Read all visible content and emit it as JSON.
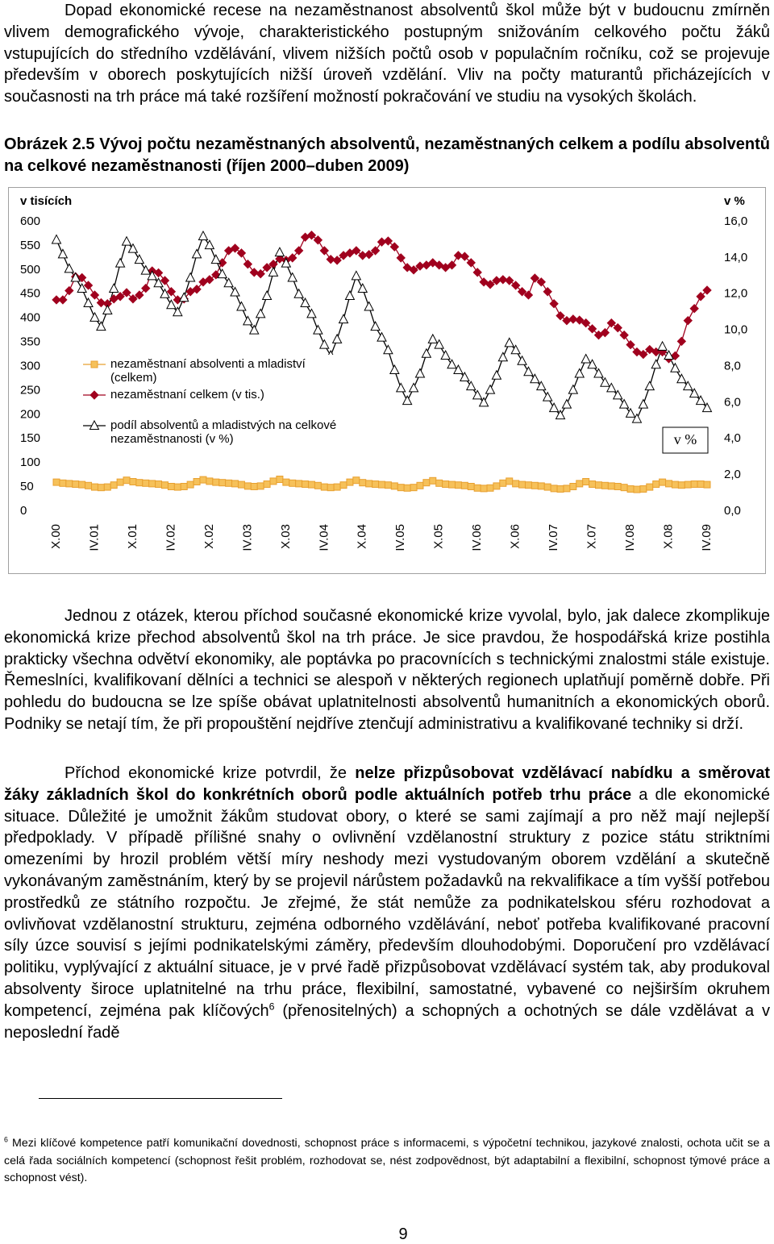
{
  "intro_paragraph": "Dopad ekonomické recese na nezaměstnanost absolventů škol může být v budoucnu zmírněn vlivem demografického vývoje, charakteristického postupným snižováním celkového počtu žáků vstupujících do středního vzdělávání, vlivem nižších počtů osob v populačním ročníku, což se projevuje především v oborech poskytujících nižší úroveň vzdělání. Vliv na počty maturantů přicházejících v současnosti na trh práce má také rozšíření možností pokračování ve studiu na vysokých školách.",
  "figure_caption": "Obrázek 2.5 Vývoj počtu nezaměstnaných absolventů, nezaměstnaných celkem a podílu absolventů na celkové nezaměstnanosti (říjen 2000–duben 2009)",
  "chart_data": {
    "type": "line",
    "y_label": "v tisících",
    "y2_label": "v %",
    "annotation": "v %",
    "legend": "lower left",
    "categories": [
      "X.00",
      null,
      null,
      null,
      null,
      null,
      "IV.01",
      null,
      null,
      null,
      null,
      null,
      "X.01",
      null,
      null,
      null,
      null,
      null,
      "IV.02",
      null,
      null,
      null,
      null,
      null,
      "X.02",
      null,
      null,
      null,
      null,
      null,
      "IV.03",
      null,
      null,
      null,
      null,
      null,
      "X.03",
      null,
      null,
      null,
      null,
      null,
      "IV.04",
      null,
      null,
      null,
      null,
      null,
      "X.04",
      null,
      null,
      null,
      null,
      null,
      "IV.05",
      null,
      null,
      null,
      null,
      null,
      "X.05",
      null,
      null,
      null,
      null,
      null,
      "IV.06",
      null,
      null,
      null,
      null,
      null,
      "X.06",
      null,
      null,
      null,
      null,
      null,
      "IV.07",
      null,
      null,
      null,
      null,
      null,
      "X.07",
      null,
      null,
      null,
      null,
      null,
      "IV.08",
      null,
      null,
      null,
      null,
      null,
      "X.08",
      null,
      null,
      null,
      null,
      null,
      "IV.09"
    ],
    "ylim": [
      0,
      600
    ],
    "yticks": [
      0,
      50,
      100,
      150,
      200,
      250,
      300,
      350,
      400,
      450,
      500,
      550,
      600
    ],
    "y2lim": [
      0,
      16
    ],
    "y2ticks": [
      {
        "value": 0,
        "label": "0,0"
      },
      {
        "value": 2,
        "label": "2,0"
      },
      {
        "value": 4,
        "label": "4,0"
      },
      {
        "value": 6,
        "label": "6,0"
      },
      {
        "value": 8,
        "label": "8,0"
      },
      {
        "value": 10,
        "label": "10,0"
      },
      {
        "value": 12,
        "label": "12,0"
      },
      {
        "value": 14,
        "label": "14,0"
      },
      {
        "value": 16,
        "label": "16,0"
      }
    ],
    "series": [
      {
        "name": "nezaměstnaní absolventi a mladiství (celkem)",
        "color": "#e8a030",
        "marker": "square",
        "marker_fill": "#f6c15a",
        "values": [
          60,
          58,
          57,
          56,
          55,
          53,
          50,
          49,
          50,
          54,
          60,
          64,
          61,
          59,
          58,
          57,
          56,
          54,
          51,
          50,
          51,
          55,
          61,
          65,
          62,
          60,
          59,
          58,
          57,
          55,
          52,
          51,
          52,
          56,
          62,
          66,
          60,
          58,
          57,
          56,
          55,
          53,
          50,
          49,
          50,
          54,
          60,
          64,
          59,
          57,
          56,
          55,
          54,
          52,
          49,
          48,
          49,
          53,
          59,
          63,
          58,
          56,
          55,
          54,
          53,
          51,
          48,
          47,
          48,
          52,
          58,
          62,
          57,
          55,
          54,
          53,
          52,
          50,
          47,
          46,
          47,
          51,
          57,
          61,
          56,
          54,
          53,
          52,
          51,
          49,
          46,
          45,
          46,
          50,
          56,
          60,
          57,
          55,
          54,
          55,
          56,
          56,
          55
        ]
      },
      {
        "name": "nezaměstnaní celkem (v tis.)",
        "color": "#a0001e",
        "marker": "diamond",
        "marker_fill": "#a0001e",
        "values": [
          438,
          438,
          457,
          486,
          484,
          468,
          448,
          432,
          430,
          440,
          445,
          453,
          440,
          448,
          462,
          498,
          494,
          478,
          455,
          438,
          440,
          455,
          460,
          475,
          480,
          490,
          515,
          540,
          545,
          535,
          512,
          495,
          492,
          505,
          512,
          523,
          520,
          525,
          540,
          568,
          572,
          562,
          540,
          522,
          520,
          530,
          535,
          540,
          530,
          532,
          540,
          558,
          560,
          548,
          525,
          505,
          500,
          508,
          510,
          515,
          510,
          505,
          510,
          530,
          528,
          515,
          495,
          475,
          470,
          478,
          480,
          478,
          468,
          455,
          448,
          483,
          475,
          455,
          430,
          405,
          395,
          398,
          396,
          390,
          378,
          365,
          370,
          390,
          380,
          365,
          345,
          330,
          325,
          335,
          330,
          330,
          316,
          322,
          352,
          395,
          420,
          445,
          458
        ]
      },
      {
        "name": "podíl absolventů a mladistvých na celkové nezaměstnanosti (v %)",
        "color": "#000000",
        "marker": "triangle",
        "marker_fill": "#ffffff",
        "axis": "y2",
        "values": [
          15.0,
          14.2,
          13.4,
          12.9,
          12.3,
          11.5,
          10.7,
          10.2,
          11.1,
          12.3,
          13.7,
          14.9,
          14.5,
          13.9,
          13.3,
          13.0,
          12.6,
          12.0,
          11.4,
          11.0,
          11.8,
          12.9,
          14.2,
          15.2,
          14.7,
          13.9,
          13.1,
          12.6,
          12.1,
          11.3,
          10.5,
          10.0,
          10.9,
          11.9,
          13.2,
          14.3,
          13.7,
          12.9,
          12.0,
          11.5,
          10.9,
          10.0,
          9.2,
          8.6,
          9.5,
          10.6,
          11.9,
          13.0,
          12.3,
          11.3,
          10.2,
          9.6,
          8.9,
          7.8,
          6.8,
          6.1,
          6.8,
          7.6,
          8.7,
          9.5,
          9.2,
          8.6,
          8.1,
          7.8,
          7.4,
          6.9,
          6.4,
          6.0,
          6.7,
          7.5,
          8.5,
          9.3,
          8.9,
          8.3,
          7.7,
          7.3,
          6.9,
          6.3,
          5.7,
          5.3,
          5.9,
          6.7,
          7.6,
          8.4,
          8.1,
          7.6,
          7.1,
          6.8,
          6.4,
          5.9,
          5.4,
          5.1,
          5.9,
          6.9,
          8.1,
          9.1,
          8.6,
          7.9,
          7.3,
          6.9,
          6.5,
          6.1,
          5.7
        ]
      }
    ]
  },
  "paragraph_2": "Jednou z otázek, kterou příchod současné ekonomické krize vyvolal, bylo, jak dalece zkomplikuje ekonomická krize přechod absolventů škol na trh práce. Je sice pravdou, že hospodářská krize postihla prakticky všechna odvětví ekonomiky, ale poptávka po pracovnících s technickými znalostmi stále existuje. Řemeslníci, kvalifikovaní dělníci a technici se alespoň v některých regionech uplatňují poměrně dobře. Při pohledu do budoucna se lze spíše obávat uplatnitelnosti absolventů humanitních a ekonomických oborů. Podniky se netají tím, že při propouštění nejdříve ztenčují administrativu a kvalifikované techniky si drží.",
  "paragraph_3": {
    "text_1": "Příchod ekonomické krize potvrdil, že ",
    "bold": "nelze přizpůsobovat vzdělávací nabídku a směrovat žáky základních škol do konkrétních oborů podle aktuálních potřeb trhu práce",
    "text_2": " a dle ekonomické situace. Důležité je umožnit žákům studovat obory, o které se sami zajímají a pro něž mají nejlepší předpoklady. V případě příliš­né snahy o ovlivnění vzdělanostní struktury z pozice státu striktními omezeními by hrozil problém větší míry neshody mezi vystudovaným oborem vzdělání a skutečně vykonávaným zaměstnáním, který by se projevil nárůstem požadavků na rekvalifikace a tím vyšší potřebou prostředků ze státního rozpočtu. Je zřejmé, že stát nemůže za podnikatelskou sféru rozhodovat a ovlivňovat vzdělanostní strukturu, zejména odborného vzdělávání, neboť potřeba kvalifikované pracovní síly úzce souvisí s jejími podnikatelskými záměry, především dlouhodobými. Doporučení pro vzdělávací politiku, vyplývající z aktuální situace, je v prvé řadě přizpůsobovat vzdělávací systém tak, aby produkoval absolventy široce uplatnitelné na trhu práce, flexibilní, samostatné, vybavené co nejširším okruhem kompetencí, zejména pak klíčových",
    "footnote_ref": "6",
    "text_3": " (přenositelných) a schopných a ochotných se dále vzdělávat a v neposlední řadě"
  },
  "footnote": {
    "number": "6",
    "text": "Mezi klíčové kompetence patří komunikační dovednosti, schopnost práce s informacemi, s výpočetní technikou, jazykové znalosti, ochota učit se a celá řada sociálních kompetencí (schopnost řešit problém, rozhodovat se, nést zodpovědnost, být adaptabilní a flexibilní, schopnost týmové práce a schopnost vést)."
  },
  "page_number": "9"
}
